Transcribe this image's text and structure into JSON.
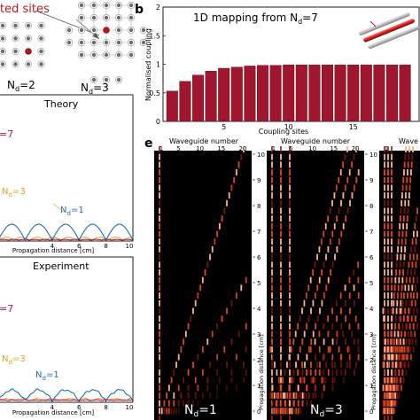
{
  "panel_a": {
    "label_excited": "ted sites",
    "nd2_label": "N",
    "nd2_sub": "d",
    "nd2_val": "=2",
    "nd3_label": "N",
    "nd3_sub": "d",
    "nd3_val": "=3"
  },
  "panel_b": {
    "letter": "b",
    "title_main": "1D mapping from N",
    "title_sub": "d",
    "title_val": "=7",
    "ylabel": "Normalised coupling",
    "xlabel": "Coupling sites",
    "yticks": [
      "0",
      "0.5",
      "1",
      "1.5",
      "2"
    ],
    "xticks": [
      "5",
      "10",
      "15"
    ],
    "bar_color": "#a0162e"
  },
  "panel_theory": {
    "title": "Theory",
    "label_nd7": "=7",
    "label_nd3_n": "N",
    "label_nd3_sub": "d",
    "label_nd3_val": "=3",
    "label_nd1_n": "N",
    "label_nd1_sub": "d",
    "label_nd1_val": "=1",
    "xticks": [
      "4",
      "6",
      "8",
      "10"
    ],
    "xlabel": "Propagation distance [cm]",
    "color_nd7": "#b0143a",
    "color_nd3": "#e3a21a",
    "color_nd1": "#1f6fb4"
  },
  "panel_experiment": {
    "title": "Experiment",
    "label_nd7": "=7",
    "label_nd3_n": "N",
    "label_nd3_sub": "d",
    "label_nd3_val": "=3",
    "label_nd1_n": "N",
    "label_nd1_sub": "d",
    "label_nd1_val": "=1",
    "xticks": [
      "4",
      "6",
      "8",
      "10"
    ],
    "xlabel": "Propagation distance [cm]"
  },
  "panel_e": {
    "letter": "e",
    "top_label": "Waveguide number",
    "top_label_3": "Wave",
    "top_ticks_1": [
      "1",
      "5",
      "10",
      "15",
      "20"
    ],
    "top_ticks_2": [
      "1",
      "5",
      "10",
      "15",
      "20"
    ],
    "top_ticks_3": [
      "1"
    ],
    "zticks": [
      "10",
      "9",
      "8",
      "7",
      "6",
      "5",
      "4",
      "3",
      "2",
      "1",
      "0"
    ],
    "zlabel": "Propagation distance [cm]",
    "label1_n": "N",
    "label1_sub": "d",
    "label1_val": "=1",
    "label2_n": "N",
    "label2_sub": "d",
    "label2_val": "=3"
  },
  "chart_data": [
    {
      "type": "bar",
      "title": "1D mapping from Nd=7",
      "xlabel": "Coupling sites",
      "ylabel": "Normalised coupling",
      "ylim": [
        0,
        2
      ],
      "categories": [
        1,
        2,
        3,
        4,
        5,
        6,
        7,
        8,
        9,
        10,
        11,
        12,
        13,
        14,
        15,
        16,
        17,
        18,
        19
      ],
      "values": [
        0.53,
        0.7,
        0.81,
        0.88,
        0.93,
        0.95,
        0.97,
        0.98,
        0.98,
        0.99,
        0.99,
        0.99,
        0.99,
        0.99,
        0.99,
        0.99,
        0.99,
        0.99,
        0.99
      ]
    }
  ]
}
